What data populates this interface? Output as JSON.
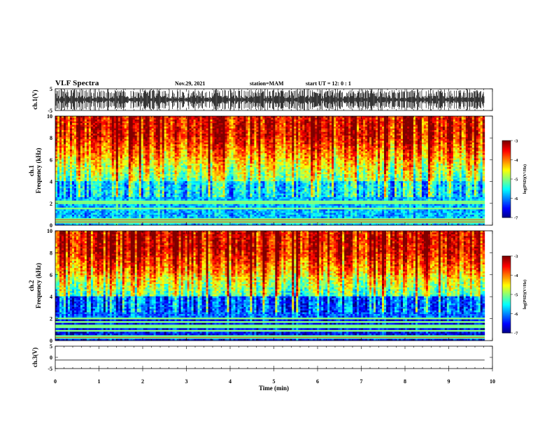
{
  "header": {
    "title": "VLF Spectra",
    "date": "Nov.29, 2021",
    "station": "station=MAM",
    "start": "start UT =  12: 0 : 1"
  },
  "chart_data": [
    {
      "type": "line",
      "panel": "ch1-waveform",
      "ylabel": "ch.1(V)",
      "yticks": [
        "5",
        "-5"
      ],
      "ylim": [
        -5,
        5
      ],
      "xlim": [
        0,
        10
      ],
      "x_data_end": 9.82,
      "description_values": {
        "amplitude_range": [
          -5,
          5
        ],
        "impulsive_bursts": true
      }
    },
    {
      "type": "heatmap",
      "panel": "ch1-spectrogram",
      "ylabel": "ch.1\nFrequency (kHz)",
      "ylim": [
        0,
        10
      ],
      "yticks": [
        "0",
        "2",
        "4",
        "6",
        "8",
        "10"
      ],
      "xlim": [
        0,
        10
      ],
      "x_data_end": 9.82,
      "colorbar": {
        "label": "log(PSD)(V²/Hz)",
        "ticks": [
          "-3",
          "-4",
          "-5",
          "-6",
          "-7"
        ],
        "range": [
          -7,
          -3
        ]
      },
      "bands_khz": [
        0.3,
        0.5,
        1.5,
        2.0,
        2.15
      ]
    },
    {
      "type": "heatmap",
      "panel": "ch2-spectrogram",
      "ylabel": "ch.2\nFrequency (kHz)",
      "ylim": [
        0,
        10
      ],
      "yticks": [
        "0",
        "2",
        "4",
        "6",
        "8",
        "10"
      ],
      "xlim": [
        0,
        10
      ],
      "x_data_end": 9.82,
      "colorbar": {
        "label": "log(PSD)(V²/Hz)",
        "ticks": [
          "-3",
          "-4",
          "-5",
          "-6",
          "-7"
        ],
        "range": [
          -7,
          -3
        ]
      },
      "bands_khz": [
        0.3,
        0.9,
        1.3,
        1.7,
        2.0
      ]
    },
    {
      "type": "line",
      "panel": "ch3-waveform",
      "ylabel": "ch.3(V)",
      "yticks": [
        "5",
        "0",
        "-5"
      ],
      "ylim": [
        -5,
        5
      ],
      "xlim": [
        0,
        10
      ],
      "x_data_end": 9.82,
      "constant_value": -1.2
    }
  ],
  "xaxis": {
    "label": "Time (min)",
    "ticks": [
      "0",
      "1",
      "2",
      "3",
      "4",
      "5",
      "6",
      "7",
      "8",
      "9",
      "10"
    ]
  },
  "colors": {
    "spectrum": [
      "#00008b",
      "#0000ff",
      "#00bfff",
      "#00ff80",
      "#ffff00",
      "#ff8000",
      "#ff0000"
    ]
  }
}
